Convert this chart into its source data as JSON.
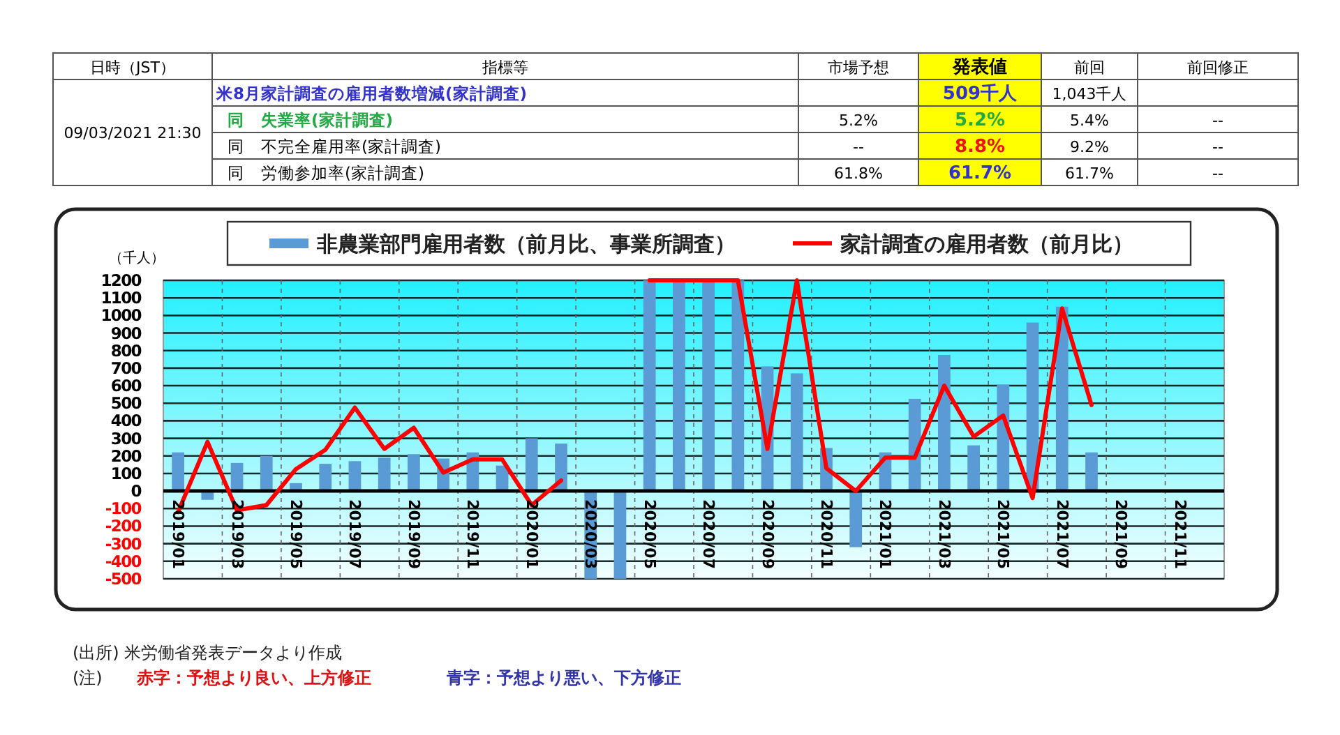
{
  "chart_data": [
    {
      "type": "other",
      "categories": [
        "日時（JST）",
        "指標等",
        "市場予想",
        "発表値",
        "前回",
        "前回修正"
      ],
      "cell_labels": [
        [
          "09/03/2021 21:30",
          "米8月家計調査の雇用者数増減(家計調査)",
          null,
          "509千人",
          "1,043千人",
          null
        ],
        [
          null,
          "同　失業率(家計調査)",
          "5.2%",
          "5.2%",
          "5.4%",
          "--"
        ],
        [
          null,
          "同　不完全雇用率(家計調査)",
          "--",
          "8.8%",
          "9.2%",
          "--"
        ],
        [
          null,
          "同　労働参加率(家計調査)",
          "61.8%",
          "61.7%",
          "61.7%",
          "--"
        ]
      ],
      "colors": [
        [
          null,
          "#3333cc",
          null,
          "#3333cc",
          null,
          null
        ],
        [
          null,
          "#22aa44",
          null,
          "#22aa44",
          null,
          null
        ],
        [
          null,
          null,
          null,
          "#ee1111",
          null,
          null
        ],
        [
          null,
          null,
          null,
          "#3333cc",
          null,
          null
        ]
      ]
    },
    {
      "type": "bar",
      "ylabel": "（千人）",
      "categories": [
        "2019/01",
        null,
        "2019/03",
        null,
        "2019/05",
        null,
        "2019/07",
        null,
        "2019/09",
        null,
        "2019/11",
        null,
        "2020/01",
        null,
        "2020/03",
        null,
        "2020/05",
        null,
        "2020/07",
        null,
        "2020/09",
        null,
        "2020/11",
        null,
        "2021/01",
        null,
        "2021/03",
        null,
        "2021/05",
        null,
        "2021/07",
        null,
        "2021/09",
        null,
        "2021/11",
        null
      ],
      "series": [
        {
          "name": "非農業部門雇用者数（前月比、事業所調査）",
          "type": "bar",
          "color": "#5b9bd5",
          "values": [
            220,
            -50,
            160,
            200,
            45,
            155,
            170,
            190,
            210,
            185,
            220,
            145,
            300,
            270,
            -500,
            -500,
            1200,
            1200,
            1200,
            1200,
            710,
            670,
            245,
            -320,
            220,
            525,
            775,
            260,
            605,
            960,
            1050,
            220,
            null,
            null,
            null,
            null
          ]
        },
        {
          "name": "家計調査の雇用者数（前月比）",
          "type": "line",
          "color": "#ff0000",
          "values": [
            -120,
            280,
            -110,
            -80,
            125,
            235,
            475,
            240,
            360,
            105,
            180,
            180,
            -80,
            60,
            null,
            null,
            1200,
            1200,
            1200,
            1200,
            240,
            1200,
            130,
            0,
            190,
            190,
            600,
            310,
            430,
            -40,
            1040,
            490,
            null,
            null,
            null,
            null
          ]
        }
      ],
      "ylim": [
        -500,
        1200
      ],
      "yticks": [
        -500,
        -400,
        -300,
        -200,
        -100,
        0,
        100,
        200,
        300,
        400,
        500,
        600,
        700,
        800,
        900,
        1000,
        1100,
        1200
      ],
      "grid": true,
      "legend": "top",
      "annotations": [
        "(出所) 米労働省発表データより作成",
        "(注)",
        "赤字：予想より良い、上方修正",
        "青字：予想より悪い、下方修正"
      ]
    }
  ]
}
